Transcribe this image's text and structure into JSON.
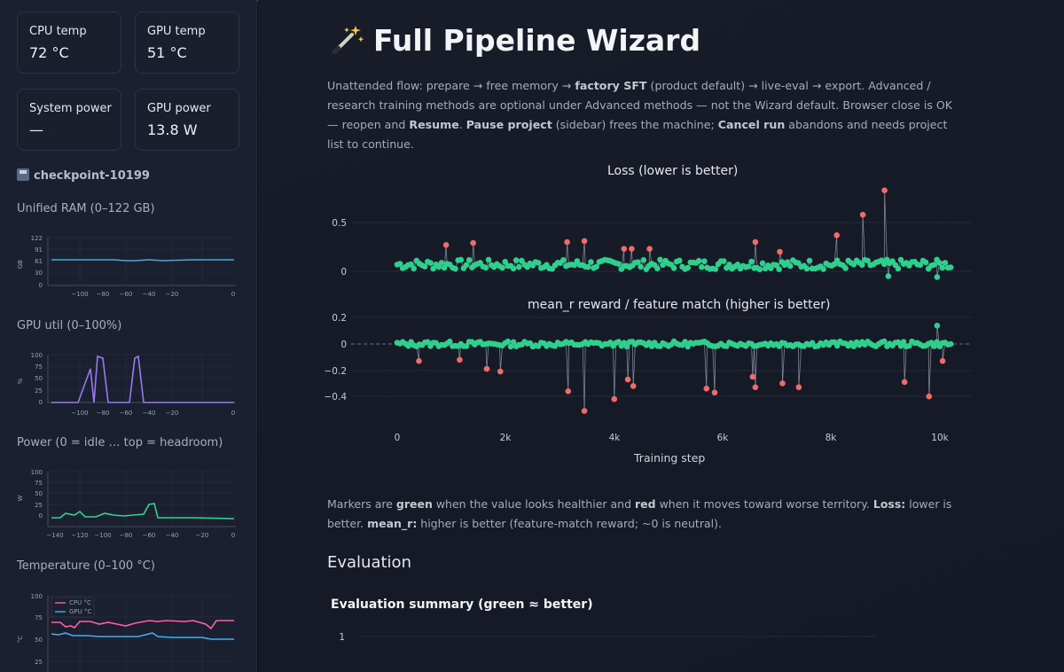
{
  "sidebar": {
    "metrics": [
      {
        "label": "CPU temp",
        "value": "72 °C"
      },
      {
        "label": "GPU temp",
        "value": "51 °C"
      },
      {
        "label": "System power",
        "value": "—"
      },
      {
        "label": "GPU power",
        "value": "13.8 W"
      }
    ],
    "checkpoint": "checkpoint-10199",
    "ram_heading": "Unified RAM (0–122 GB)",
    "gpu_heading": "GPU util (0–100%)",
    "power_heading": "Power (0 = idle … top = headroom)",
    "temp_heading": "Temperature (0–100 °C)"
  },
  "main": {
    "title": "Full Pipeline Wizard",
    "description": {
      "p1": "Unattended flow: prepare → free memory → ",
      "b1": "factory SFT",
      "p2": " (product default) → live-eval → export. Advanced / research training methods are optional under Advanced methods — not the Wizard default. Browser close is OK — reopen and ",
      "b2": "Resume",
      "p3": ". ",
      "b3": "Pause project",
      "p4": " (sidebar) frees the machine; ",
      "b4": "Cancel run",
      "p5": " abandons and needs project list to continue."
    },
    "note": {
      "p1": "Markers are ",
      "b1": "green",
      "p2": " when the value looks healthier and ",
      "b2": "red",
      "p3": " when it moves toward worse territory. ",
      "b3": "Loss:",
      "p4": " lower is better. ",
      "b4": "mean_r:",
      "p5": " higher is better (feature-match reward; ~0 is neutral)."
    },
    "eval_heading": "Evaluation",
    "eval_summary_title": "Evaluation summary (green ≈ better)",
    "eval_first_tick": "1"
  },
  "colors": {
    "good": "#2fcf8d",
    "bad": "#f26b6b",
    "gpu_line": "#9a78f0",
    "ram_line": "#3fa9e0",
    "power_line": "#35d08f",
    "cpu_temp": "#ff5fa8",
    "gpu_temp": "#3fb0f0"
  },
  "chart_data": [
    {
      "type": "scatter",
      "title": "Loss (lower is better)",
      "xlabel": "Training step",
      "x_ticks": [
        "0",
        "2k",
        "4k",
        "6k",
        "8k",
        "10k"
      ],
      "y_ticks": [
        "0",
        "0.5"
      ],
      "xlim": [
        0,
        10199
      ],
      "ylim": [
        -0.07,
        0.85
      ],
      "spikes": [
        {
          "x": 900,
          "y": 0.27
        },
        {
          "x": 1400,
          "y": 0.29
        },
        {
          "x": 3130,
          "y": 0.3
        },
        {
          "x": 3450,
          "y": 0.31
        },
        {
          "x": 4180,
          "y": 0.23
        },
        {
          "x": 4320,
          "y": 0.23
        },
        {
          "x": 4650,
          "y": 0.23
        },
        {
          "x": 6600,
          "y": 0.3
        },
        {
          "x": 7050,
          "y": 0.2
        },
        {
          "x": 8100,
          "y": 0.37
        },
        {
          "x": 8580,
          "y": 0.58
        },
        {
          "x": 8980,
          "y": 0.83
        },
        {
          "x": 9050,
          "y": -0.05
        },
        {
          "x": 9950,
          "y": -0.06
        }
      ]
    },
    {
      "type": "scatter",
      "title": "mean_r reward / feature match (higher is better)",
      "xlabel": "Training step",
      "x_ticks": [
        "0",
        "2k",
        "4k",
        "6k",
        "8k",
        "10k"
      ],
      "y_ticks": [
        "0.2",
        "0",
        "−0.2",
        "−0.4"
      ],
      "xlim": [
        0,
        10199
      ],
      "ylim": [
        -0.55,
        0.22
      ],
      "spikes": [
        {
          "x": 400,
          "y": -0.13
        },
        {
          "x": 1150,
          "y": -0.12
        },
        {
          "x": 1650,
          "y": -0.19
        },
        {
          "x": 1900,
          "y": -0.21
        },
        {
          "x": 3150,
          "y": -0.36
        },
        {
          "x": 3450,
          "y": -0.51
        },
        {
          "x": 4000,
          "y": -0.42
        },
        {
          "x": 4250,
          "y": -0.27
        },
        {
          "x": 4350,
          "y": -0.32
        },
        {
          "x": 5700,
          "y": -0.34
        },
        {
          "x": 5850,
          "y": -0.37
        },
        {
          "x": 6550,
          "y": -0.25
        },
        {
          "x": 6600,
          "y": -0.33
        },
        {
          "x": 7100,
          "y": -0.3
        },
        {
          "x": 7400,
          "y": -0.33
        },
        {
          "x": 9350,
          "y": -0.29
        },
        {
          "x": 9800,
          "y": -0.4
        },
        {
          "x": 9950,
          "y": 0.14
        },
        {
          "x": 10050,
          "y": -0.13
        }
      ]
    }
  ]
}
